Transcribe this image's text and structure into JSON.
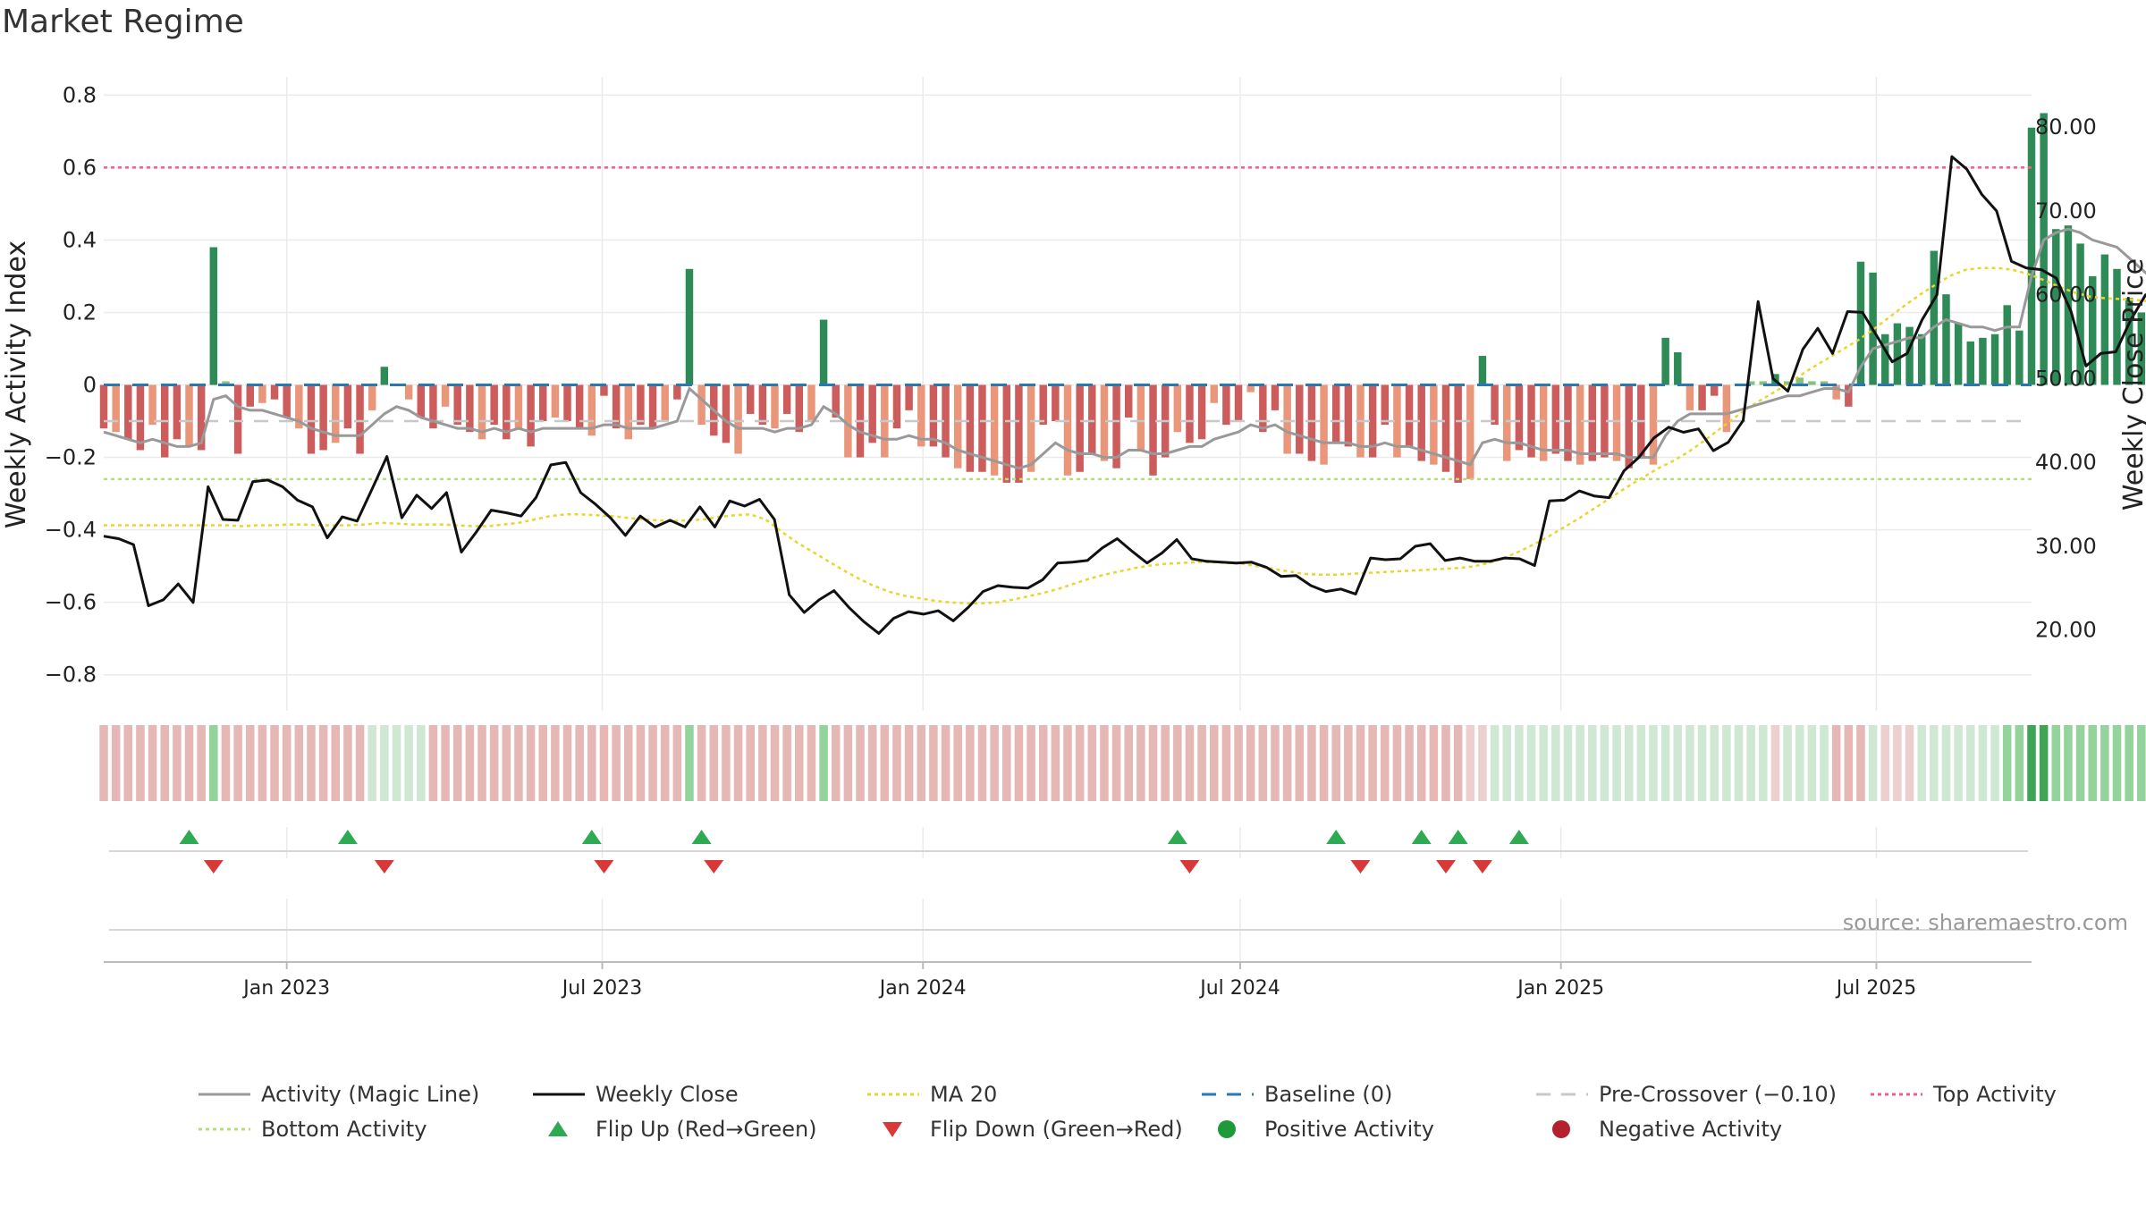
{
  "chart_data": {
    "type": "bar",
    "title": "Market Regime",
    "ylabel": "Weekly Activity Index",
    "y2label": "Weekly Close Price",
    "ylim": [
      -0.85,
      0.85
    ],
    "y2lim": [
      12.5,
      86
    ],
    "y_ticks": [
      0.8,
      0.6,
      0.4,
      0.2,
      0,
      -0.2,
      -0.4,
      -0.6,
      -0.8
    ],
    "y_tick_labels": [
      "0.8",
      "0.6",
      "0.4",
      "0.2",
      "0",
      "−0.2",
      "−0.4",
      "−0.6",
      "−0.8"
    ],
    "y2_ticks": [
      80,
      70,
      60,
      50,
      40,
      30,
      20
    ],
    "y2_tick_labels": [
      "80.00",
      "70.00",
      "60.00",
      "50.00",
      "40.00",
      "30.00",
      "20.00"
    ],
    "x_range": [
      "2022-09-18",
      "2025-09-28"
    ],
    "x_ticks": [
      "2023-01-01",
      "2023-07-01",
      "2024-01-01",
      "2024-07-01",
      "2025-01-01",
      "2025-07-01"
    ],
    "x_tick_labels": [
      "Jan 2023",
      "Jul 2023",
      "Jan 2024",
      "Jul 2024",
      "Jan 2025",
      "Jul 2025"
    ],
    "first_week": "2022-09-18",
    "reference_lines": {
      "baseline": 0,
      "pre_crossover": -0.1,
      "top_activity": 0.6,
      "bottom_activity": -0.26
    },
    "activity": [
      -0.12,
      -0.13,
      -0.15,
      -0.18,
      -0.11,
      -0.2,
      -0.15,
      -0.17,
      -0.18,
      0.38,
      0.01,
      -0.19,
      -0.06,
      -0.05,
      -0.04,
      -0.09,
      -0.12,
      -0.19,
      -0.18,
      -0.16,
      -0.12,
      -0.19,
      -0.07,
      0.05,
      0.0,
      -0.04,
      -0.09,
      -0.12,
      -0.06,
      -0.11,
      -0.13,
      -0.15,
      -0.11,
      -0.15,
      -0.12,
      -0.17,
      -0.1,
      -0.09,
      -0.1,
      -0.12,
      -0.14,
      -0.03,
      -0.12,
      -0.15,
      -0.11,
      -0.12,
      -0.1,
      -0.04,
      0.32,
      -0.11,
      -0.14,
      -0.16,
      -0.19,
      -0.08,
      -0.11,
      -0.12,
      -0.08,
      -0.13,
      -0.1,
      0.18,
      -0.09,
      -0.2,
      -0.2,
      -0.16,
      -0.2,
      -0.12,
      -0.07,
      -0.17,
      -0.17,
      -0.2,
      -0.23,
      -0.24,
      -0.24,
      -0.25,
      -0.27,
      -0.27,
      -0.24,
      -0.11,
      -0.1,
      -0.25,
      -0.24,
      -0.19,
      -0.21,
      -0.23,
      -0.09,
      -0.18,
      -0.25,
      -0.2,
      -0.13,
      -0.16,
      -0.15,
      -0.05,
      -0.11,
      -0.1,
      -0.02,
      -0.13,
      -0.07,
      -0.19,
      -0.19,
      -0.21,
      -0.22,
      -0.16,
      -0.17,
      -0.2,
      -0.2,
      -0.11,
      -0.2,
      -0.17,
      -0.21,
      -0.22,
      -0.24,
      -0.27,
      -0.26,
      0.08,
      -0.11,
      -0.21,
      -0.18,
      -0.2,
      -0.21,
      -0.19,
      -0.21,
      -0.22,
      -0.21,
      -0.2,
      -0.21,
      -0.23,
      -0.2,
      -0.22,
      0.13,
      0.09,
      -0.07,
      -0.07,
      -0.03,
      -0.13,
      0.0,
      0.01,
      0.01,
      0.03,
      0.01,
      0.02,
      0.01,
      0.01,
      -0.04,
      -0.06,
      0.34,
      0.31,
      0.14,
      0.17,
      0.16,
      0.14,
      0.37,
      0.25,
      0.17,
      0.12,
      0.13,
      0.14,
      0.22,
      0.15,
      0.71,
      0.75,
      0.43,
      0.44,
      0.39,
      0.3,
      0.36,
      0.32,
      0.24,
      0.2,
      0.15,
      0.26,
      0.2,
      0.21,
      0.22,
      0.24,
      0.67,
      0.29,
      0.25,
      0.29,
      0.21,
      0.22,
      0.3,
      0.29,
      0.24,
      0.23,
      0.22,
      0.19,
      0.52,
      0.41,
      0.36,
      0.31,
      0.31,
      0.28,
      0.35,
      0.45
    ],
    "magic_line": [
      -0.13,
      -0.14,
      -0.15,
      -0.16,
      -0.15,
      -0.16,
      -0.17,
      -0.17,
      -0.16,
      -0.04,
      -0.03,
      -0.06,
      -0.07,
      -0.07,
      -0.08,
      -0.09,
      -0.1,
      -0.12,
      -0.13,
      -0.14,
      -0.14,
      -0.14,
      -0.11,
      -0.08,
      -0.06,
      -0.07,
      -0.09,
      -0.1,
      -0.11,
      -0.12,
      -0.12,
      -0.13,
      -0.12,
      -0.13,
      -0.12,
      -0.13,
      -0.12,
      -0.12,
      -0.12,
      -0.12,
      -0.12,
      -0.11,
      -0.11,
      -0.12,
      -0.12,
      -0.12,
      -0.11,
      -0.1,
      -0.01,
      -0.04,
      -0.07,
      -0.1,
      -0.12,
      -0.12,
      -0.12,
      -0.13,
      -0.12,
      -0.12,
      -0.11,
      -0.06,
      -0.08,
      -0.11,
      -0.13,
      -0.14,
      -0.15,
      -0.15,
      -0.14,
      -0.15,
      -0.15,
      -0.16,
      -0.18,
      -0.19,
      -0.2,
      -0.21,
      -0.22,
      -0.23,
      -0.22,
      -0.19,
      -0.16,
      -0.18,
      -0.19,
      -0.19,
      -0.2,
      -0.2,
      -0.18,
      -0.18,
      -0.19,
      -0.19,
      -0.18,
      -0.17,
      -0.17,
      -0.15,
      -0.14,
      -0.13,
      -0.11,
      -0.12,
      -0.11,
      -0.13,
      -0.14,
      -0.15,
      -0.16,
      -0.16,
      -0.16,
      -0.17,
      -0.17,
      -0.16,
      -0.17,
      -0.17,
      -0.18,
      -0.19,
      -0.2,
      -0.21,
      -0.22,
      -0.16,
      -0.15,
      -0.16,
      -0.16,
      -0.17,
      -0.18,
      -0.18,
      -0.18,
      -0.19,
      -0.19,
      -0.19,
      -0.19,
      -0.2,
      -0.2,
      -0.2,
      -0.14,
      -0.1,
      -0.08,
      -0.08,
      -0.08,
      -0.08,
      -0.07,
      -0.06,
      -0.05,
      -0.04,
      -0.03,
      -0.03,
      -0.02,
      -0.01,
      -0.01,
      -0.02,
      0.05,
      0.1,
      0.11,
      0.12,
      0.13,
      0.13,
      0.16,
      0.18,
      0.17,
      0.16,
      0.16,
      0.15,
      0.16,
      0.16,
      0.3,
      0.4,
      0.42,
      0.43,
      0.42,
      0.4,
      0.39,
      0.38,
      0.35,
      0.32,
      0.29,
      0.28,
      0.27,
      0.26,
      0.25,
      0.25,
      0.35,
      0.33,
      0.31,
      0.3,
      0.28,
      0.27,
      0.27,
      0.27,
      0.26,
      0.26,
      0.25,
      0.24,
      0.3,
      0.32,
      0.33,
      0.32,
      0.32,
      0.31,
      0.32,
      0.34
    ],
    "weekly_close": [
      31.2,
      30.9,
      30.2,
      22.9,
      23.6,
      25.5,
      23.3,
      37.1,
      33.2,
      33.1,
      37.7,
      37.9,
      37.1,
      35.5,
      34.7,
      31.0,
      33.5,
      33.0,
      36.8,
      40.7,
      33.4,
      36.1,
      34.5,
      36.4,
      29.3,
      31.7,
      34.3,
      34.0,
      33.6,
      35.8,
      39.7,
      40.0,
      36.4,
      35.0,
      33.4,
      31.3,
      33.6,
      32.3,
      33.1,
      32.3,
      34.7,
      32.3,
      35.4,
      34.8,
      35.6,
      33.2,
      24.2,
      22.1,
      23.6,
      24.7,
      22.7,
      21.0,
      19.6,
      21.4,
      22.2,
      21.9,
      22.3,
      21.1,
      22.7,
      24.6,
      25.3,
      25.1,
      25.0,
      26.0,
      28.0,
      28.1,
      28.3,
      29.8,
      30.9,
      29.4,
      28.0,
      29.2,
      30.8,
      28.5,
      28.2,
      28.1,
      28.0,
      28.1,
      27.5,
      26.4,
      26.5,
      25.3,
      24.6,
      24.9,
      24.3,
      28.6,
      28.4,
      28.5,
      30.0,
      30.3,
      28.3,
      28.6,
      28.2,
      28.2,
      28.6,
      28.5,
      27.7,
      35.4,
      35.5,
      36.6,
      36.0,
      35.8,
      39.0,
      40.6,
      42.9,
      44.2,
      43.6,
      44.0,
      41.4,
      42.4,
      45.0,
      59.2,
      50.0,
      48.5,
      53.5,
      56.0,
      53.0,
      58.0,
      57.9,
      55.0,
      52.0,
      53.0,
      57.0,
      60.0,
      76.5,
      75.0,
      72.0,
      70.0,
      64.0,
      63.2,
      63.0,
      62.0,
      58.0,
      51.5,
      53.0,
      53.2,
      57.0,
      60.0,
      59.8,
      55.0,
      52.0,
      51.0,
      53.0,
      60.0,
      56.0,
      57.5,
      60.0,
      62.0,
      60.5,
      60.5,
      61.5,
      58.0,
      66.0,
      65.0,
      68.0,
      68.2,
      70.0,
      71.5,
      73.5
    ],
    "ma20": [
      32.5,
      32.5,
      32.5,
      32.5,
      32.5,
      32.5,
      32.5,
      32.5,
      32.5,
      32.4,
      32.5,
      32.5,
      32.6,
      32.6,
      32.5,
      32.5,
      32.5,
      32.6,
      32.8,
      32.7,
      32.6,
      32.6,
      32.6,
      32.5,
      32.4,
      32.4,
      32.6,
      32.8,
      33.2,
      33.6,
      33.8,
      33.8,
      33.7,
      33.6,
      33.4,
      33.2,
      33.1,
      33.0,
      33.1,
      33.2,
      33.5,
      33.7,
      33.8,
      33.2,
      31.8,
      30.5,
      29.4,
      28.3,
      27.2,
      26.2,
      25.3,
      24.6,
      24.1,
      23.8,
      23.5,
      23.3,
      23.2,
      23.2,
      23.3,
      23.6,
      24.0,
      24.4,
      24.9,
      25.5,
      26.1,
      26.6,
      27.0,
      27.4,
      27.7,
      27.9,
      28.0,
      28.1,
      28.1,
      28.0,
      27.9,
      27.6,
      27.3,
      27.0,
      26.7,
      26.6,
      26.6,
      26.7,
      26.8,
      26.9,
      27.0,
      27.1,
      27.2,
      27.3,
      27.4,
      27.6,
      28.0,
      28.6,
      29.4,
      30.3,
      31.3,
      32.4,
      33.5,
      34.7,
      35.9,
      37.1,
      38.2,
      39.3,
      40.2,
      41.3,
      42.6,
      44.0,
      45.4,
      46.7,
      47.8,
      48.9,
      50.1,
      51.3,
      52.4,
      53.5,
      54.6,
      55.9,
      57.3,
      58.7,
      60.0,
      61.2,
      62.3,
      63.0,
      63.2,
      63.2,
      63.0,
      62.5,
      61.8,
      61.0,
      60.3,
      59.8,
      59.6,
      59.5,
      59.4,
      59.2,
      58.8,
      58.3,
      57.8,
      57.4,
      57.2,
      57.1,
      57.1,
      57.2,
      57.4,
      57.7,
      58.0,
      58.4,
      58.6,
      59.0,
      60.0,
      61.0,
      62.0,
      63.0,
      64.0,
      65.0
    ],
    "regime_strip": [
      1,
      1,
      1,
      1,
      1,
      1,
      1,
      1,
      1,
      4,
      1,
      1,
      1,
      1,
      1,
      1,
      1,
      1,
      1,
      1,
      1,
      1,
      3,
      3,
      3,
      3,
      3,
      1,
      1,
      1,
      1,
      1,
      1,
      1,
      1,
      1,
      1,
      1,
      1,
      1,
      1,
      1,
      1,
      1,
      1,
      1,
      1,
      1,
      4,
      1,
      1,
      1,
      1,
      1,
      1,
      1,
      1,
      1,
      1,
      4,
      1,
      1,
      1,
      1,
      1,
      1,
      1,
      1,
      1,
      1,
      1,
      1,
      1,
      1,
      1,
      1,
      1,
      1,
      1,
      1,
      1,
      1,
      1,
      1,
      1,
      1,
      1,
      1,
      1,
      1,
      1,
      1,
      1,
      1,
      1,
      1,
      1,
      1,
      1,
      1,
      1,
      1,
      1,
      1,
      1,
      1,
      1,
      1,
      1,
      1,
      1,
      1,
      2,
      2,
      3,
      3,
      3,
      3,
      3,
      3,
      3,
      3,
      3,
      3,
      3,
      3,
      3,
      3,
      3,
      3,
      3,
      3,
      3,
      3,
      3,
      3,
      3,
      2,
      3,
      3,
      3,
      3,
      1,
      1,
      1,
      3,
      2,
      2,
      2,
      3,
      3,
      3,
      3,
      3,
      3,
      3,
      4,
      4,
      4,
      4,
      4,
      4,
      4,
      4,
      4,
      4,
      4,
      4,
      4,
      4,
      4,
      4,
      4,
      4,
      4,
      4,
      4,
      4,
      4,
      4,
      4,
      4,
      4,
      4,
      4,
      4,
      4,
      4,
      4,
      4,
      4,
      4,
      4,
      4,
      4,
      4,
      4,
      4,
      4,
      4,
      4,
      4,
      4,
      4,
      4,
      4,
      4,
      4,
      4,
      4
    ],
    "flip_up_dates": [
      "2022-11-06",
      "2023-02-05",
      "2023-06-25",
      "2023-08-27",
      "2024-05-26",
      "2024-08-25",
      "2024-10-13",
      "2024-11-03",
      "2024-12-08"
    ],
    "flip_down_dates": [
      "2022-11-20",
      "2023-02-26",
      "2023-07-02",
      "2023-09-03",
      "2024-06-02",
      "2024-09-08",
      "2024-10-27",
      "2024-11-17"
    ],
    "legend": [
      {
        "label": "Activity (Magic Line)",
        "type": "line",
        "color": "#999999"
      },
      {
        "label": "Weekly Close",
        "type": "line",
        "color": "#111111"
      },
      {
        "label": "MA 20",
        "type": "dotted",
        "color": "#e8d52e"
      },
      {
        "label": "Baseline (0)",
        "type": "dashed",
        "color": "#2b77b5"
      },
      {
        "label": "Pre-Crossover (−0.10)",
        "type": "dashed",
        "color": "#c8c8c8"
      },
      {
        "label": "Top Activity",
        "type": "dotted",
        "color": "#e5638e"
      },
      {
        "label": "Bottom Activity",
        "type": "dotted",
        "color": "#b9db7e"
      },
      {
        "label": "Flip Up (Red→Green)",
        "type": "tri-up",
        "color": "#2eaa52"
      },
      {
        "label": "Flip Down (Green→Red)",
        "type": "tri-down",
        "color": "#d93838"
      },
      {
        "label": "Positive Activity",
        "type": "dot",
        "color": "#1f9a3a"
      },
      {
        "label": "Negative Activity",
        "type": "dot",
        "color": "#b3222c"
      }
    ],
    "legend_placement": "bottom",
    "source": "source: sharemaestro.com",
    "colors": {
      "pos_strong": "#2e8b57",
      "pos_weak": "#82c17f",
      "neg_strong": "#cd5c5c",
      "neg_weak": "#e9967a",
      "magic_line": "#999999",
      "close": "#111111",
      "ma20": "#e8d52e",
      "grid": "#ebebeb"
    }
  }
}
